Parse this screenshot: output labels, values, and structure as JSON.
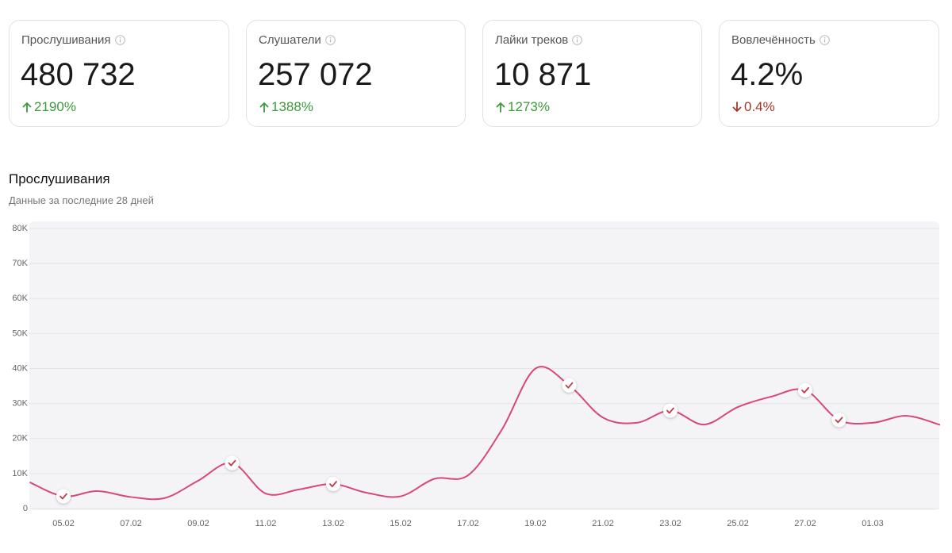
{
  "cards": [
    {
      "label": "Прослушивания",
      "value": "480 732",
      "change": "2190%",
      "trend": "up",
      "color": "#3b9a3b"
    },
    {
      "label": "Слушатели",
      "value": "257 072",
      "change": "1388%",
      "trend": "up",
      "color": "#3b9a3b"
    },
    {
      "label": "Лайки треков",
      "value": "10 871",
      "change": "1273%",
      "trend": "up",
      "color": "#3b9a3b"
    },
    {
      "label": "Вовлечённость",
      "value": "4.2%",
      "change": "0.4%",
      "trend": "down",
      "color": "#a8362a"
    }
  ],
  "chart_data": {
    "type": "line",
    "title": "Прослушивания",
    "subtitle": "Данные за последние 28 дней",
    "categories": [
      null,
      "05.02",
      null,
      "07.02",
      null,
      "09.02",
      null,
      "11.02",
      null,
      "13.02",
      null,
      "15.02",
      null,
      "17.02",
      null,
      "19.02",
      null,
      "21.02",
      null,
      "23.02",
      null,
      "25.02",
      null,
      "27.02",
      null,
      "01.03",
      null,
      null
    ],
    "series": [
      {
        "name": "Прослушивания",
        "color": "#d9477a",
        "values": [
          7500,
          3500,
          5000,
          3300,
          3000,
          8000,
          13000,
          4300,
          5500,
          7000,
          4500,
          3500,
          8500,
          9500,
          22500,
          40000,
          35200,
          26000,
          24500,
          28000,
          24000,
          29000,
          32000,
          33800,
          25300,
          24500,
          26500,
          23900
        ]
      }
    ],
    "marked_points": [
      1,
      6,
      9,
      16,
      19,
      23,
      24
    ],
    "ylim": [
      0,
      80000
    ],
    "yticks": [
      0,
      {
        "value": 10000,
        "label": "10K"
      },
      {
        "value": 20000,
        "label": "20K"
      },
      {
        "value": 30000,
        "label": "30K"
      },
      {
        "value": 40000,
        "label": "40K"
      },
      {
        "value": 50000,
        "label": "50K"
      },
      {
        "value": 60000,
        "label": "60K"
      },
      {
        "value": 70000,
        "label": "70K"
      },
      {
        "value": 80000,
        "label": "80K"
      }
    ],
    "grid": true
  }
}
